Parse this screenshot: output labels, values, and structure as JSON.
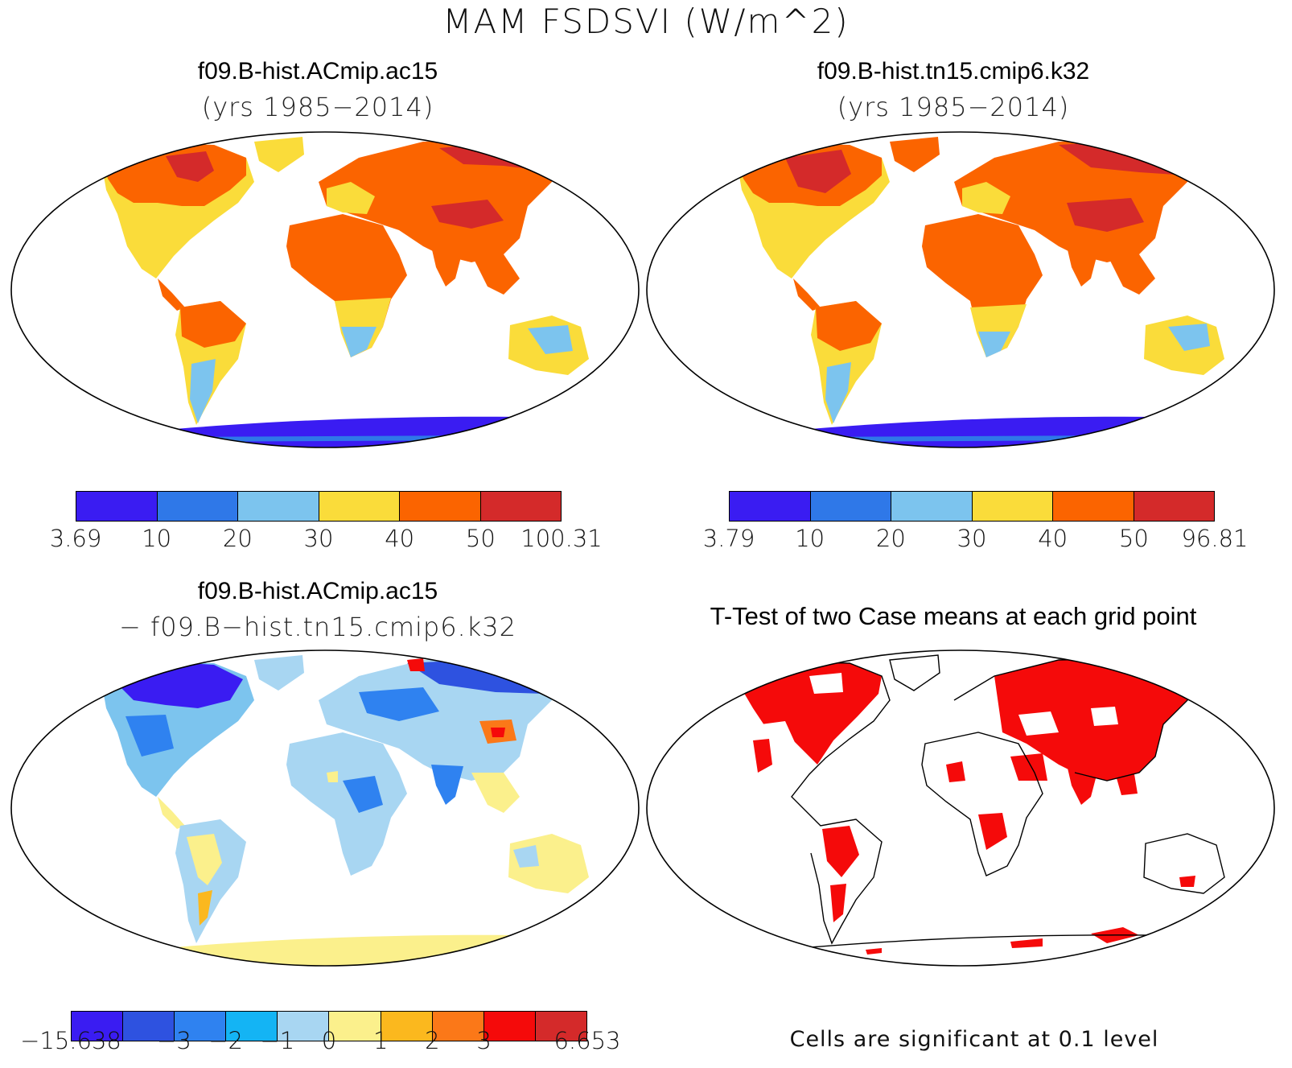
{
  "figure": {
    "title": "MAM FSDSVI (W/m^2)"
  },
  "panels": [
    {
      "id": "case1",
      "title": "f09.B-hist.ACmip.ac15",
      "subtitle": "(yrs 1985−2014)"
    },
    {
      "id": "case2",
      "title": "f09.B-hist.tn15.cmip6.k32",
      "subtitle": "(yrs 1985−2014)"
    },
    {
      "id": "diff",
      "title": "f09.B-hist.ACmip.ac15",
      "subtitle": "− f09.B−hist.tn15.cmip6.k32"
    },
    {
      "id": "ttest",
      "title": "T-Test of two Case means at each grid point",
      "note": "Cells are significant at 0.1 level"
    }
  ],
  "colorbars": {
    "case1": {
      "colors": [
        "#3a1cf2",
        "#2f78e8",
        "#7cc4ee",
        "#fadc3a",
        "#fb6400",
        "#d42a2a"
      ],
      "labels": [
        "3.69",
        "10",
        "20",
        "30",
        "40",
        "50",
        "100.31"
      ]
    },
    "case2": {
      "colors": [
        "#3a1cf2",
        "#2f78e8",
        "#7cc4ee",
        "#fadc3a",
        "#fb6400",
        "#d42a2a"
      ],
      "labels": [
        "3.79",
        "10",
        "20",
        "30",
        "40",
        "50",
        "96.81"
      ]
    },
    "diff": {
      "colors": [
        "#3a1cf2",
        "#2e52e0",
        "#2f82f0",
        "#14b4f4",
        "#a8d6f2",
        "#fbf08c",
        "#fbb81e",
        "#fb7818",
        "#f50a0a",
        "#d42a2a"
      ],
      "labels": [
        "−15.638",
        "",
        "−3",
        "−2",
        "−1",
        "0",
        "1",
        "2",
        "3",
        "",
        "6.653"
      ]
    }
  }
}
